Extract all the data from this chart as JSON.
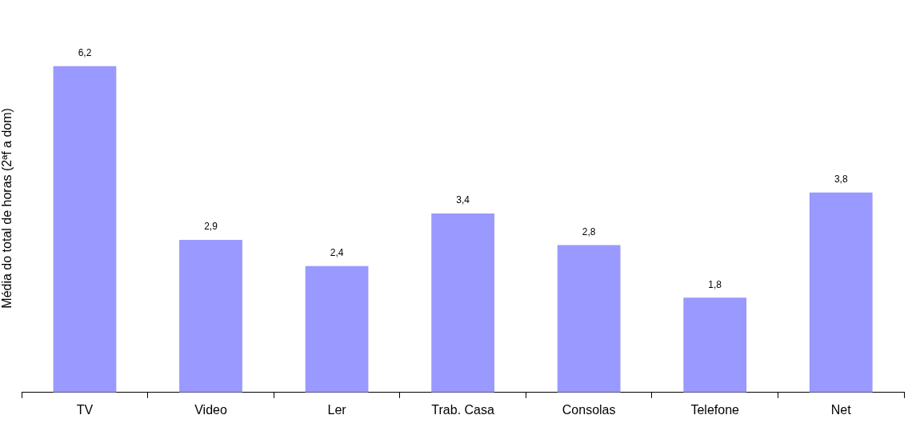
{
  "chart_data": {
    "type": "bar",
    "ylabel": "Média do total de horas (2ªf a dom)",
    "categories": [
      "TV",
      "Video",
      "Ler",
      "Trab. Casa",
      "Consolas",
      "Telefone",
      "Net"
    ],
    "values": [
      6.2,
      2.9,
      2.4,
      3.4,
      2.8,
      1.8,
      3.8
    ],
    "value_labels": [
      "6,2",
      "2,9",
      "2,4",
      "3,4",
      "2,8",
      "1,8",
      "3,8"
    ],
    "color": "#9999ff",
    "grid": false,
    "legend": false
  }
}
